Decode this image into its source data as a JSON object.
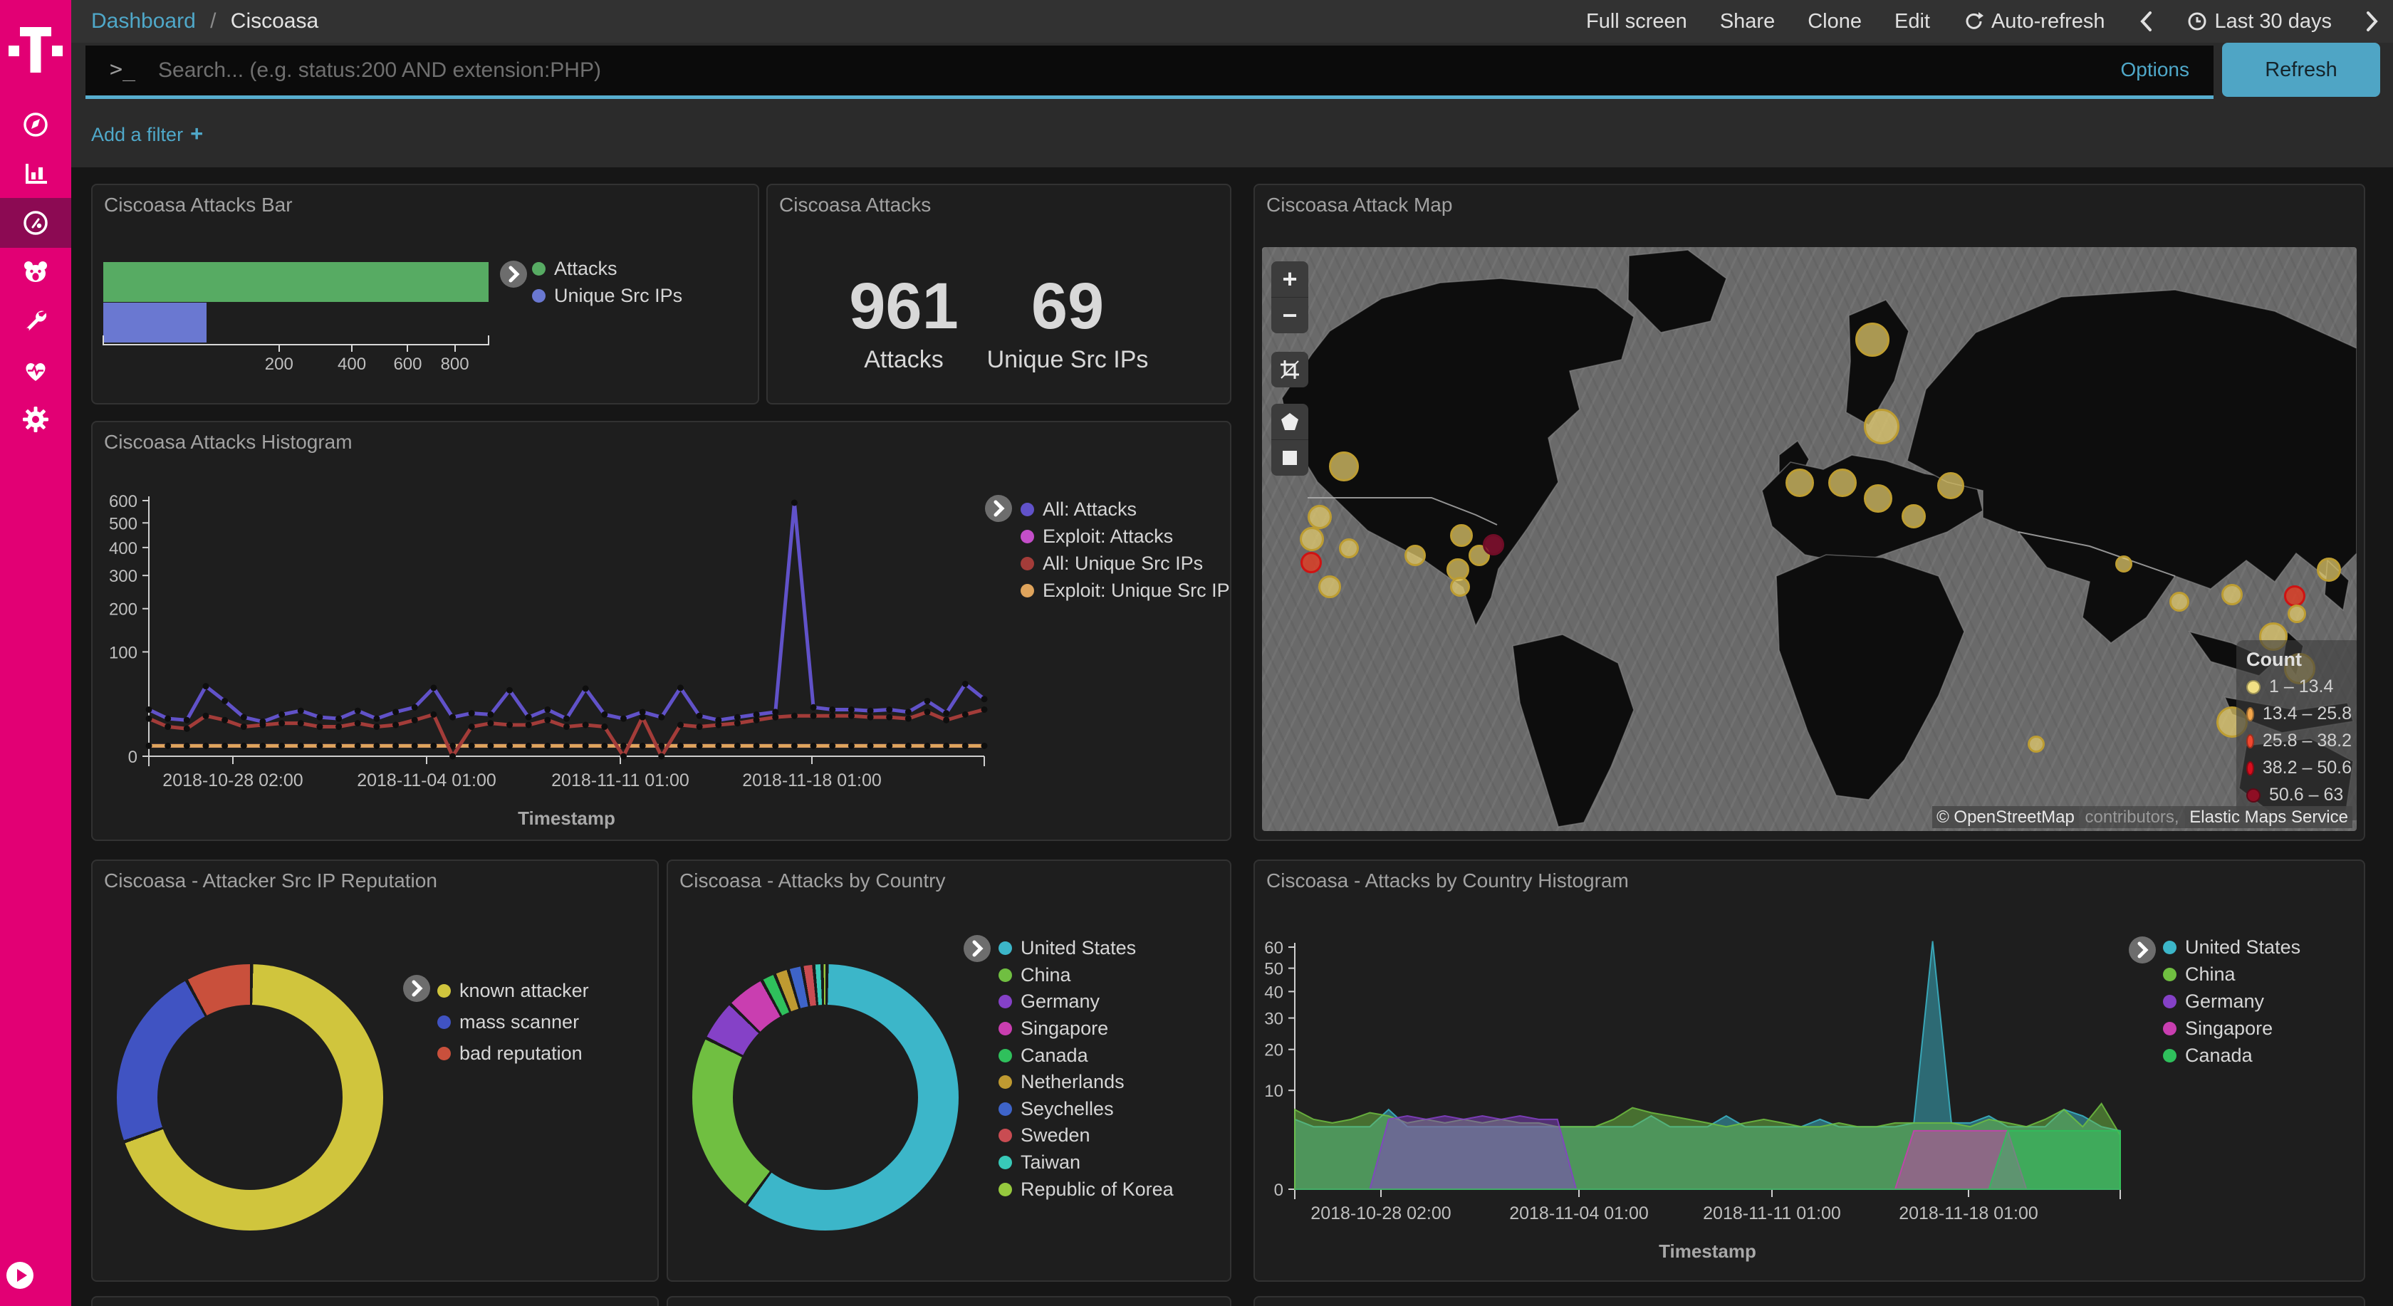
{
  "topnav": {
    "breadcrumb_root": "Dashboard",
    "breadcrumb_sep": "/",
    "breadcrumb_current": "Ciscoasa",
    "actions": [
      "Full screen",
      "Share",
      "Clone",
      "Edit"
    ],
    "auto_refresh": "Auto-refresh",
    "time_range": "Last 30 days"
  },
  "search": {
    "prompt": ">_",
    "placeholder": "Search... (e.g. status:200 AND extension:PHP)",
    "options_label": "Options",
    "refresh_label": "Refresh",
    "add_filter_label": "Add a filter",
    "add_filter_plus": "+"
  },
  "sidebar": {
    "accent_color": "#e20074",
    "active_bg": "#8c0a53",
    "items": [
      "discover",
      "visualize",
      "dashboard",
      "threat-intel",
      "dev-tools",
      "monitoring",
      "management"
    ],
    "active_item": "dashboard"
  },
  "panels": {
    "bar": {
      "title": "Ciscoasa Attacks Bar",
      "chart_data": {
        "type": "bar",
        "orientation": "horizontal",
        "scale": "sqrt",
        "xlim": [
          0,
          961
        ],
        "xticks": [
          200,
          400,
          600,
          800
        ],
        "series": [
          {
            "name": "Attacks",
            "color": "#57ab63",
            "value": 961
          },
          {
            "name": "Unique Src IPs",
            "color": "#6a78d1",
            "value": 69
          }
        ]
      }
    },
    "metric": {
      "title": "Ciscoasa Attacks",
      "metrics": [
        {
          "value": "961",
          "label": "Attacks"
        },
        {
          "value": "69",
          "label": "Unique Src IPs"
        }
      ]
    },
    "map": {
      "title": "Ciscoasa Attack Map",
      "zoom_in": "+",
      "zoom_out": "−",
      "legend_title": "Count",
      "legend": [
        {
          "label": "1 – 13.4",
          "color": "#f2e084"
        },
        {
          "label": "13.4 – 25.8",
          "color": "#f2a54a"
        },
        {
          "label": "25.8 – 38.2",
          "color": "#f2472e"
        },
        {
          "label": "38.2 – 50.6",
          "color": "#d60e1e"
        },
        {
          "label": "50.6 – 63",
          "color": "#8f0e24"
        }
      ],
      "attribution": {
        "osm": "© OpenStreetMap",
        "contributors": " contributors, ",
        "ems": "Elastic Maps Service"
      },
      "bucket_styles": {
        "1": {
          "fill": "rgba(232,207,110,0.72)",
          "stroke": "#bd9d32"
        },
        "4": {
          "fill": "rgba(226,60,34,0.80)",
          "stroke": "#cf1212"
        },
        "5": {
          "fill": "rgba(134,16,48,0.85)",
          "stroke": "#6e0c26"
        }
      },
      "circles": [
        [
          115,
          308,
          21,
          1
        ],
        [
          81,
          379,
          17,
          1
        ],
        [
          70,
          410,
          17,
          1
        ],
        [
          69,
          443,
          15,
          4
        ],
        [
          95,
          477,
          16,
          1
        ],
        [
          122,
          423,
          14,
          1
        ],
        [
          215,
          433,
          15,
          1
        ],
        [
          280,
          405,
          16,
          1
        ],
        [
          275,
          453,
          16,
          1
        ],
        [
          278,
          477,
          14,
          1
        ],
        [
          305,
          433,
          15,
          1
        ],
        [
          325,
          418,
          15,
          5
        ],
        [
          857,
          130,
          24,
          1
        ],
        [
          870,
          252,
          25,
          1
        ],
        [
          755,
          331,
          20,
          1
        ],
        [
          815,
          331,
          20,
          1
        ],
        [
          865,
          353,
          20,
          1
        ],
        [
          915,
          378,
          17,
          1
        ],
        [
          967,
          335,
          19,
          1
        ],
        [
          1210,
          445,
          12,
          1
        ],
        [
          1288,
          498,
          14,
          1
        ],
        [
          1362,
          488,
          15,
          1
        ],
        [
          1450,
          490,
          15,
          4
        ],
        [
          1498,
          453,
          17,
          1
        ],
        [
          1553,
          457,
          15,
          1
        ],
        [
          1453,
          515,
          13,
          1
        ],
        [
          1585,
          445,
          12,
          1
        ],
        [
          1087,
          698,
          12,
          1
        ],
        [
          1420,
          547,
          20,
          1
        ],
        [
          1457,
          592,
          22,
          1
        ],
        [
          1362,
          667,
          22,
          1
        ]
      ]
    },
    "histogram": {
      "title": "Ciscoasa Attacks Histogram",
      "xlabel": "Timestamp",
      "chart_data": {
        "type": "line",
        "scale": "sqrt",
        "ylim": [
          0,
          600
        ],
        "yticks": [
          0,
          100,
          200,
          300,
          400,
          500,
          600
        ],
        "xtick_labels": [
          "2018-10-28 02:00",
          "2018-11-04 01:00",
          "2018-11-11 01:00",
          "2018-11-18 01:00"
        ],
        "series": [
          {
            "name": "All: Attacks",
            "color": "#6152c9",
            "values": [
              20,
              13,
              12,
              45,
              28,
              14,
              11,
              16,
              19,
              14,
              13,
              19,
              13,
              18,
              22,
              43,
              14,
              17,
              16,
              40,
              14,
              20,
              13,
              42,
              16,
              13,
              18,
              14,
              43,
              15,
              12,
              14,
              16,
              18,
              590,
              22,
              20,
              20,
              19,
              20,
              18,
              28,
              17,
              48,
              30
            ]
          },
          {
            "name": "Exploit: Attacks",
            "color": "#c44ec9",
            "values": [
              1,
              1,
              1,
              1,
              1,
              1,
              1,
              1,
              1,
              1,
              1,
              1,
              1,
              1,
              1,
              1,
              1,
              1,
              1,
              1,
              1,
              1,
              1,
              1,
              1,
              1,
              1,
              1,
              1,
              1,
              1,
              1,
              1,
              1,
              1,
              1,
              1,
              1,
              1,
              1,
              1,
              1,
              1,
              1,
              1
            ]
          },
          {
            "name": "All: Unique Src IPs",
            "color": "#a33c39",
            "values": [
              13,
              8,
              7,
              15,
              12,
              8,
              9,
              10,
              10,
              8,
              8,
              10,
              8,
              9,
              12,
              16,
              0,
              8,
              10,
              9,
              9,
              12,
              8,
              9,
              8,
              0,
              14,
              0,
              9,
              8,
              9,
              10,
              12,
              14,
              15,
              15,
              15,
              15,
              14,
              14,
              13,
              18,
              12,
              16,
              20
            ]
          },
          {
            "name": "Exploit: Unique Src IPs",
            "color": "#dfa45c",
            "values": [
              1,
              1,
              1,
              1,
              1,
              1,
              1,
              1,
              1,
              1,
              1,
              1,
              1,
              1,
              1,
              1,
              1,
              1,
              1,
              1,
              1,
              1,
              1,
              1,
              1,
              1,
              1,
              1,
              1,
              1,
              1,
              1,
              1,
              1,
              1,
              1,
              1,
              1,
              1,
              1,
              1,
              1,
              1,
              1,
              1
            ]
          }
        ]
      }
    },
    "reputation": {
      "title": "Ciscoasa - Attacker Src IP Reputation",
      "chart_data": {
        "type": "pie",
        "donut": true,
        "slices": [
          {
            "label": "known attacker",
            "color": "#d0c53d",
            "pct": 69.4
          },
          {
            "label": "mass scanner",
            "color": "#4053c2",
            "pct": 22.5
          },
          {
            "label": "bad reputation",
            "color": "#c9503c",
            "pct": 8.1
          }
        ]
      }
    },
    "country": {
      "title": "Ciscoasa - Attacks by Country",
      "chart_data": {
        "type": "pie",
        "donut": true,
        "slices": [
          {
            "label": "United States",
            "color": "#3cb6c9",
            "pct": 59.7
          },
          {
            "label": "China",
            "color": "#70bf41",
            "pct": 22.2
          },
          {
            "label": "Germany",
            "color": "#8541c7",
            "pct": 5.0
          },
          {
            "label": "Singapore",
            "color": "#c93eb0",
            "pct": 4.7
          },
          {
            "label": "Canada",
            "color": "#2fc05c",
            "pct": 1.7
          },
          {
            "label": "Netherlands",
            "color": "#bf9a31",
            "pct": 1.7
          },
          {
            "label": "Seychelles",
            "color": "#3e64c9",
            "pct": 1.7
          },
          {
            "label": "Sweden",
            "color": "#c94c52",
            "pct": 1.4
          },
          {
            "label": "Taiwan",
            "color": "#38c9b8",
            "pct": 1.0
          },
          {
            "label": "Republic of Korea",
            "color": "#96c93e",
            "pct": 0.6
          }
        ]
      }
    },
    "country_histogram": {
      "title": "Ciscoasa - Attacks by Country Histogram",
      "xlabel": "Timestamp",
      "chart_data": {
        "type": "area",
        "scale": "sqrt",
        "ylim": [
          0,
          60
        ],
        "yticks": [
          0,
          10,
          20,
          30,
          40,
          50,
          60
        ],
        "xtick_labels": [
          "2018-10-28 02:00",
          "2018-11-04 01:00",
          "2018-11-11 01:00",
          "2018-11-18 01:00"
        ],
        "series": [
          {
            "name": "United States",
            "color": "#3cb6c9",
            "values": [
              5,
              4,
              4,
              4,
              4,
              6.5,
              4,
              4,
              4,
              4,
              4,
              4,
              4,
              4,
              4,
              4,
              4,
              4,
              4,
              5.5,
              4,
              4,
              4,
              5.5,
              4,
              4,
              4,
              4,
              5,
              4,
              4,
              4,
              4,
              4.5,
              63,
              4.5,
              4.5,
              5.5,
              4,
              4,
              4,
              6.5,
              5.5,
              4,
              3.5
            ]
          },
          {
            "name": "China",
            "color": "#70bf41",
            "values": [
              6.5,
              5,
              4.5,
              5,
              6,
              5.5,
              4.5,
              5,
              4.5,
              5,
              4.5,
              5,
              4.5,
              4.5,
              4,
              4,
              4,
              5,
              6.8,
              6,
              5.5,
              5,
              4.5,
              4,
              4.5,
              5,
              4.5,
              4,
              4,
              4.5,
              4,
              4,
              4.5,
              4.5,
              4.5,
              4.5,
              4,
              5,
              4.5,
              4,
              5,
              6.5,
              4,
              7.5,
              3
            ]
          },
          {
            "name": "Germany",
            "color": "#8541c7",
            "values": [
              0,
              0,
              0,
              0,
              0,
              5,
              5.5,
              5,
              5.5,
              5,
              5.5,
              5,
              5.5,
              5,
              5,
              0,
              0,
              0,
              0,
              0,
              0,
              0,
              0,
              0,
              0,
              0,
              0,
              0,
              0,
              0,
              0,
              0,
              0,
              0,
              0,
              0,
              0,
              0,
              0,
              0,
              0,
              0,
              0,
              0,
              0
            ]
          },
          {
            "name": "Singapore",
            "color": "#c93eb0",
            "values": [
              0,
              0,
              0,
              0,
              0,
              0,
              0,
              0,
              0,
              0,
              0,
              0,
              0,
              0,
              0,
              0,
              0,
              0,
              0,
              0,
              0,
              0,
              0,
              0,
              0,
              0,
              0,
              0,
              0,
              0,
              0,
              0,
              0,
              3.5,
              3.5,
              3.5,
              3.5,
              3.5,
              3.5,
              0,
              0,
              0,
              0,
              0,
              0
            ]
          },
          {
            "name": "Canada",
            "color": "#2fc05c",
            "values": [
              0,
              0,
              0,
              0,
              0,
              0,
              0,
              0,
              0,
              0,
              0,
              0,
              0,
              0,
              0,
              0,
              0,
              0,
              0,
              0,
              0,
              0,
              0,
              0,
              0,
              0,
              0,
              0,
              0,
              0,
              0,
              0,
              0,
              0,
              0,
              0,
              0,
              0,
              3.5,
              3.5,
              3.5,
              3.5,
              3.5,
              3.5,
              3.5
            ]
          }
        ]
      }
    }
  }
}
